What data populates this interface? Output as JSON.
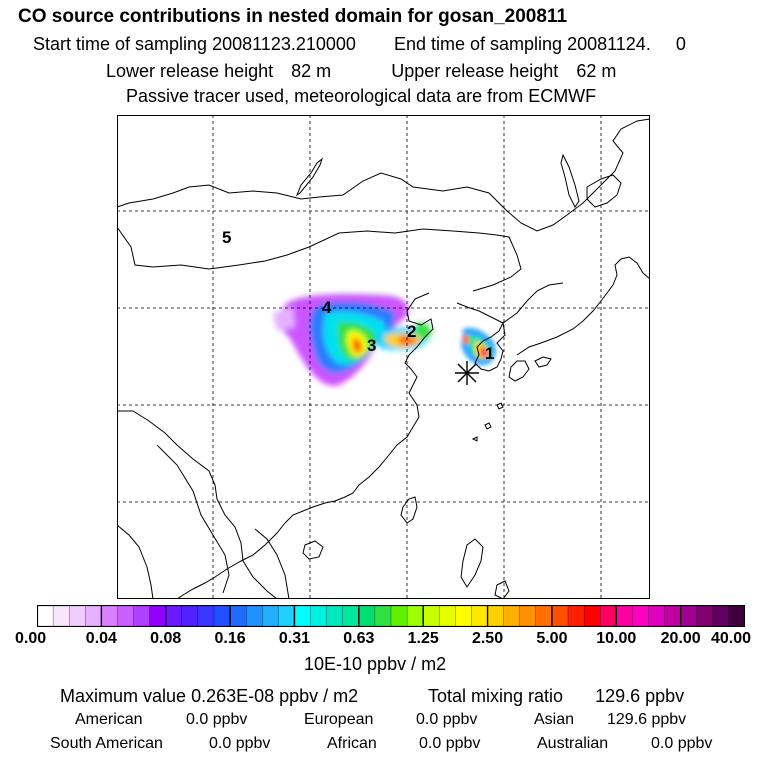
{
  "header": {
    "title": "CO  source contributions in nested domain for gosan_200811",
    "start_label": "Start time of sampling",
    "start_value": "20081123.210000",
    "end_label": "End time of sampling",
    "end_value": "20081124.     0",
    "lower_label": "Lower release height",
    "lower_value": "82 m",
    "upper_label": "Upper release height",
    "upper_value": "62 m",
    "note": "Passive tracer used, meteorological data are from ECMWF"
  },
  "map": {
    "region_labels": [
      "1",
      "2",
      "3",
      "4",
      "5"
    ],
    "receptor_icon": "asterisk-marker"
  },
  "colorbar": {
    "ticks": [
      "0.00",
      "0.04",
      "0.08",
      "0.16",
      "0.31",
      "0.63",
      "1.25",
      "2.50",
      "5.00",
      "10.00",
      "20.00",
      "40.00"
    ],
    "colors": [
      "#ffffff",
      "#f8e6ff",
      "#f0ccff",
      "#e6b0ff",
      "#d880ff",
      "#c860ff",
      "#b040ff",
      "#9000ff",
      "#6a1bff",
      "#5020ff",
      "#3a35ff",
      "#2050ff",
      "#1f6bff",
      "#2090ff",
      "#20b0ff",
      "#20d0ff",
      "#00ffff",
      "#00f0e0",
      "#00e8c0",
      "#00e8a0",
      "#00e070",
      "#30e040",
      "#60f000",
      "#a0ff00",
      "#c8ff00",
      "#e8ff00",
      "#ffff00",
      "#ffe800",
      "#ffd000",
      "#ffb000",
      "#ff9000",
      "#ff7000",
      "#ff5000",
      "#ff2000",
      "#ff0000",
      "#ff0060",
      "#ff00a0",
      "#ff00c0",
      "#e000c0",
      "#c000a0",
      "#a00090",
      "#800070",
      "#600060",
      "#400040"
    ],
    "unit": "10E-10 ppbv / m2"
  },
  "stats": {
    "max_label": "Maximum value",
    "max_value": "0.263E-08 ppbv / m2",
    "total_label": "Total mixing ratio",
    "total_value": "129.6 ppbv",
    "regions": [
      {
        "name": "American",
        "value": "0.0 ppbv"
      },
      {
        "name": "European",
        "value": "0.0 ppbv"
      },
      {
        "name": "Asian",
        "value": "129.6 ppbv"
      },
      {
        "name": "South American",
        "value": "0.0 ppbv"
      },
      {
        "name": "African",
        "value": "0.0 ppbv"
      },
      {
        "name": "Australian",
        "value": "0.0 ppbv"
      }
    ]
  }
}
